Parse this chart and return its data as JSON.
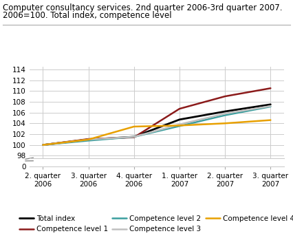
{
  "title_line1": "Computer consultancy services. 2nd quarter 2006-3rd quarter 2007.",
  "title_line2": "2006=100. Total index, competence level",
  "x_labels": [
    "2. quarter\n2006",
    "3. quarter\n2006",
    "4. quarter\n2006",
    "1. quarter\n2007",
    "2. quarter\n2007",
    "3. quarter\n2007"
  ],
  "series": {
    "Total index": [
      100.0,
      101.0,
      101.5,
      104.7,
      106.2,
      107.5
    ],
    "Competence level 1": [
      100.0,
      101.1,
      101.4,
      106.7,
      109.0,
      110.5
    ],
    "Competence level 2": [
      100.0,
      100.8,
      101.5,
      103.5,
      105.5,
      107.1
    ],
    "Competence level 3": [
      100.0,
      101.0,
      101.5,
      103.8,
      105.8,
      107.2
    ],
    "Competence level 4": [
      100.0,
      101.0,
      103.4,
      103.6,
      104.0,
      104.6
    ]
  },
  "colors": {
    "Total index": "#000000",
    "Competence level 1": "#8B1A1A",
    "Competence level 2": "#3A9E9E",
    "Competence level 3": "#C0C0C0",
    "Competence level 4": "#E8A000"
  },
  "linewidths": {
    "Total index": 2.0,
    "Competence level 1": 1.8,
    "Competence level 2": 1.8,
    "Competence level 3": 1.8,
    "Competence level 4": 1.8
  },
  "ylim_main": [
    97.5,
    114.5
  ],
  "yticks_main": [
    98,
    100,
    102,
    104,
    106,
    108,
    110,
    112,
    114
  ],
  "background_color": "#ffffff",
  "grid_color": "#cccccc",
  "title_fontsize": 8.5,
  "legend_fontsize": 7.5,
  "tick_fontsize": 7.5
}
